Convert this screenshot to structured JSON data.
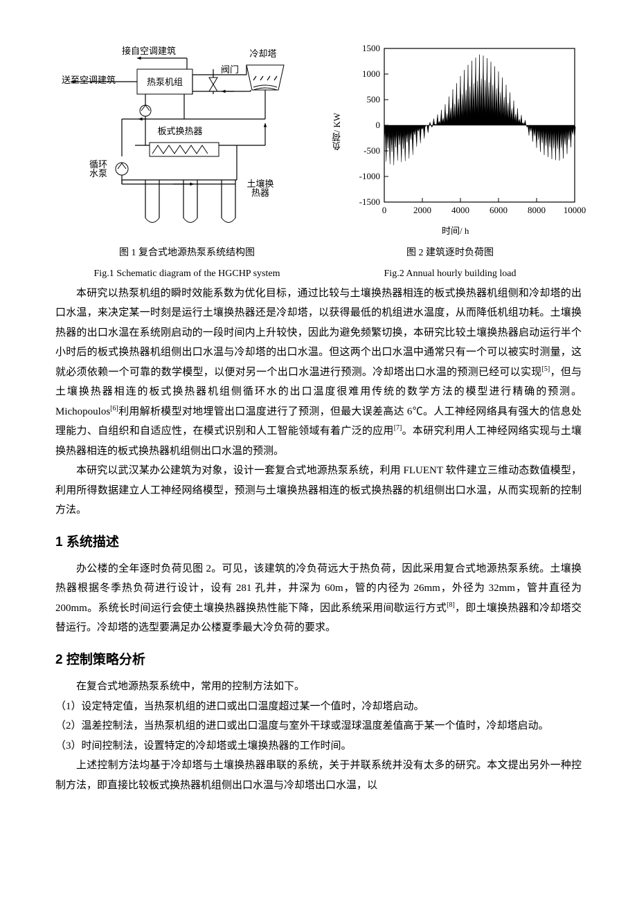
{
  "fig1": {
    "diagram": {
      "labels": {
        "in_from": "接自空调建筑",
        "out_to": "送至空调建筑",
        "unit": "热泵机组",
        "valve": "阀门",
        "tower": "冷却塔",
        "phe": "板式换热器",
        "pump": "循环\n水泵",
        "ghe": "土壤换\n热器"
      },
      "colors": {
        "stroke": "#000000",
        "fill": "#ffffff"
      },
      "line_width": 1.2
    },
    "caption_cn": "图 1 复合式地源热泵系统结构图",
    "caption_en": "Fig.1 Schematic diagram of the HGCHP system"
  },
  "fig2": {
    "chart": {
      "type": "line",
      "xlim": [
        0,
        10000
      ],
      "ylim": [
        -1500,
        1500
      ],
      "xticks": [
        0,
        2000,
        4000,
        6000,
        8000,
        10000
      ],
      "yticks": [
        -1500,
        -1000,
        -500,
        0,
        500,
        1000,
        1500
      ],
      "xlabel": "时间/ h",
      "ylabel": "负荷/ KW",
      "series_color": "#000000",
      "background_color": "#ffffff",
      "axis_color": "#000000",
      "tick_font_size": 13,
      "label_font_size": 13,
      "line_width": 1,
      "data_x": [
        0,
        100,
        200,
        300,
        400,
        500,
        600,
        700,
        800,
        900,
        1000,
        1100,
        1200,
        1300,
        1400,
        1500,
        1600,
        1700,
        1800,
        1900,
        2000,
        2100,
        2200,
        2300,
        2400,
        2500,
        2600,
        2700,
        2800,
        2900,
        3000,
        3100,
        3200,
        3300,
        3400,
        3500,
        3600,
        3700,
        3800,
        3900,
        4000,
        4100,
        4200,
        4300,
        4400,
        4500,
        4600,
        4700,
        4800,
        4900,
        5000,
        5100,
        5200,
        5300,
        5400,
        5500,
        5600,
        5700,
        5800,
        5900,
        6000,
        6100,
        6200,
        6300,
        6400,
        6500,
        6600,
        6700,
        6800,
        6900,
        7000,
        7100,
        7200,
        7300,
        7400,
        7500,
        7600,
        7700,
        7800,
        7900,
        8000,
        8100,
        8200,
        8300,
        8400,
        8500,
        8600,
        8700,
        8800,
        8900,
        9000,
        9100,
        9200,
        9300,
        9400,
        9500,
        9600,
        9700,
        9800,
        9900,
        10000
      ],
      "data_y": [
        -320,
        -710,
        -450,
        -760,
        -520,
        -780,
        -430,
        -690,
        -380,
        -720,
        -460,
        -700,
        -330,
        -650,
        -280,
        -580,
        -190,
        -420,
        -120,
        -350,
        -80,
        -260,
        0,
        -150,
        60,
        -40,
        130,
        20,
        210,
        80,
        300,
        140,
        410,
        230,
        560,
        340,
        700,
        420,
        820,
        520,
        960,
        610,
        1080,
        690,
        1180,
        760,
        1260,
        820,
        1320,
        870,
        1380,
        910,
        1360,
        880,
        1310,
        840,
        1240,
        790,
        1150,
        720,
        1050,
        640,
        930,
        550,
        790,
        440,
        640,
        330,
        480,
        220,
        330,
        120,
        200,
        50,
        100,
        -40,
        -200,
        -120,
        -320,
        -210,
        -440,
        -290,
        -520,
        -350,
        -580,
        -400,
        -620,
        -430,
        -660,
        -450,
        -680,
        -460,
        -690,
        -440,
        -650,
        -380,
        -560,
        -290,
        -430,
        -180,
        -260
      ]
    },
    "caption_cn": "图 2 建筑逐时负荷图",
    "caption_en": "Fig.2 Annual hourly building load"
  },
  "para1": "本研究以热泵机组的瞬时效能系数为优化目标，通过比较与土壤换热器相连的板式换热器机组侧和冷却塔的出口水温，来决定某一时刻是运行土壤换热器还是冷却塔，以获得最低的机组进水温度，从而降低机组功耗。土壤换热器的出口水温在系统刚启动的一段时间内上升较快，因此为避免频繁切换，本研究比较土壤换热器启动运行半个小时后的板式换热器机组侧出口水温与冷却塔的出口水温。但这两个出口水温中通常只有一个可以被实时测量，这就必须依赖一个可靠的数学模型，以便对另一个出口水温进行预测。冷却塔出口水温的预测已经可以实现[5]，但与土壤换热器相连的板式换热器机组侧循环水的出口温度很难用传统的数学方法的模型进行精确的预测。Michopoulos[6]利用解析模型对地埋管出口温度进行了预测，但最大误差高达 6℃。人工神经网络具有强大的信息处理能力、自组织和自适应性，在模式识别和人工智能领域有着广泛的应用[7]。本研究利用人工神经网络实现与土壤换热器相连的板式换热器机组侧出口水温的预测。",
  "para2": "本研究以武汉某办公建筑为对象，设计一套复合式地源热泵系统，利用 FLUENT 软件建立三维动态数值模型，利用所得数据建立人工神经网络模型，预测与土壤换热器相连的板式换热器的机组侧出口水温，从而实现新的控制方法。",
  "sec1": {
    "title": "1 系统描述",
    "body": "办公楼的全年逐时负荷见图 2。可见，该建筑的冷负荷远大于热负荷，因此采用复合式地源热泵系统。土壤换热器根据冬季热负荷进行设计，设有 281 孔井，井深为 60m，管的内径为 26mm，外径为 32mm，管井直径为 200mm。系统长时间运行会使土壤换热器换热性能下降，因此系统采用间歇运行方式[8]，即土壤换热器和冷却塔交替运行。冷却塔的选型要满足办公楼夏季最大冷负荷的要求。"
  },
  "sec2": {
    "title": "2 控制策略分析",
    "intro": "在复合式地源热泵系统中，常用的控制方法如下。",
    "items": [
      "（1）设定特定值，当热泵机组的进口或出口温度超过某一个值时，冷却塔启动。",
      "（2）温差控制法，当热泵机组的进口或出口温度与室外干球或湿球温度差值高于某一个值时，冷却塔启动。",
      "（3）时间控制法，设置特定的冷却塔或土壤换热器的工作时间。"
    ],
    "outro": "上述控制方法均基于冷却塔与土壤换热器串联的系统，关于并联系统并没有太多的研究。本文提出另外一种控制方法，即直接比较板式换热器机组侧出口水温与冷却塔出口水温，以"
  }
}
